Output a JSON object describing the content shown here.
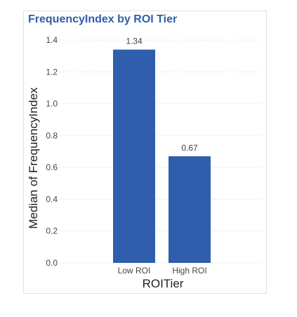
{
  "chart_data": {
    "type": "bar",
    "title": "FrequencyIndex by ROI Tier",
    "xlabel": "ROITier",
    "ylabel": "Median of FrequencyIndex",
    "categories": [
      "Low ROI",
      "High ROI"
    ],
    "values": [
      1.34,
      0.67
    ],
    "value_labels": [
      "1.34",
      "0.67"
    ],
    "ylim": [
      0,
      1.4
    ],
    "yticks": [
      0.0,
      0.2,
      0.4,
      0.6,
      0.8,
      1.0,
      1.2,
      1.4
    ],
    "ytick_labels": [
      "0.0",
      "0.2",
      "0.4",
      "0.6",
      "0.8",
      "1.0",
      "1.2",
      "1.4"
    ],
    "grid": true,
    "colors": {
      "bar": "#2e5eac",
      "title": "#2f5fa8",
      "grid": "#d0d0d0"
    }
  }
}
